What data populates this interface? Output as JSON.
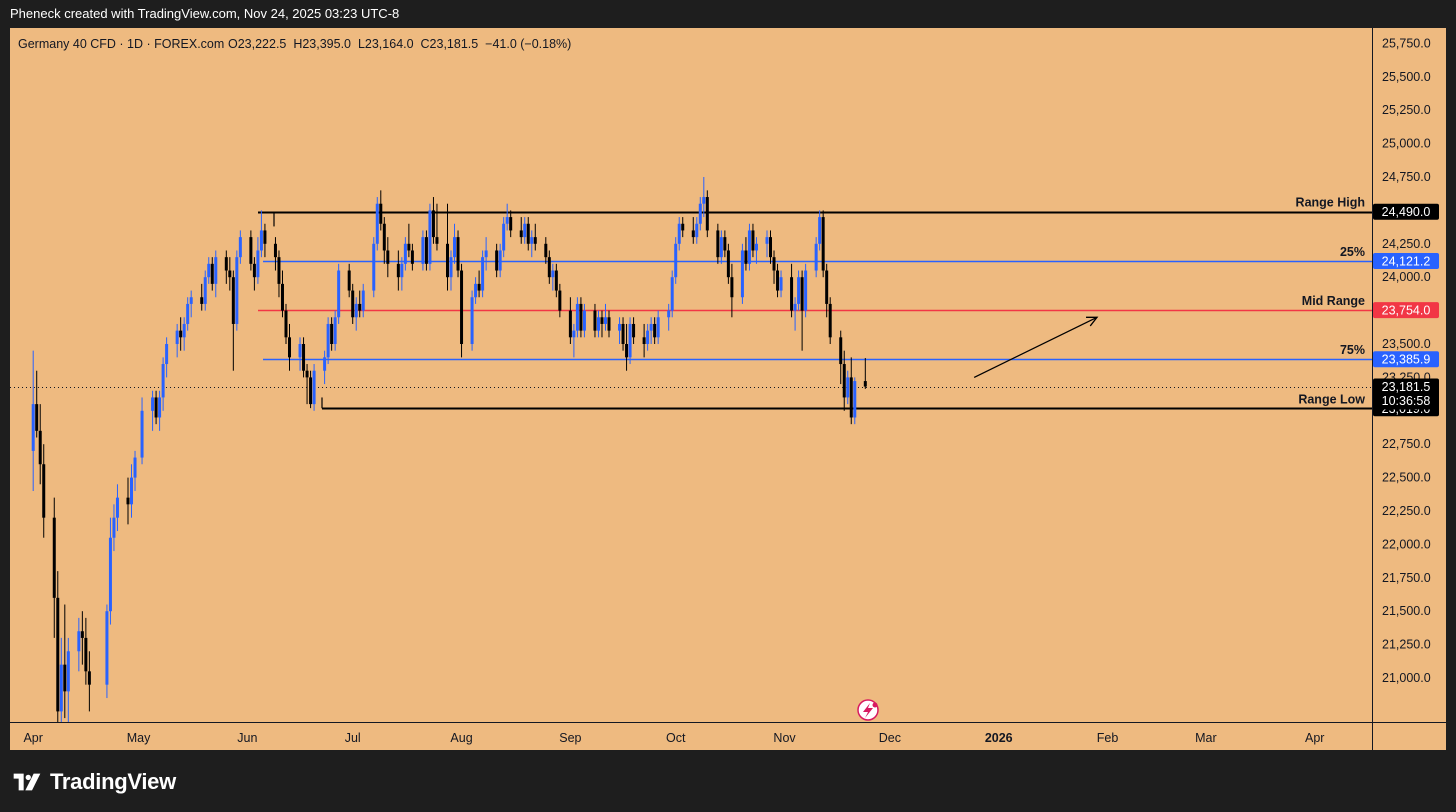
{
  "header": {
    "attribution": "Pheneck created with TradingView.com, Nov 24, 2025 03:23 UTC-8"
  },
  "legend": {
    "symbol": "Germany 40 CFD · 1D · FOREX.com",
    "ohlc": "O23,222.5  H23,395.0  L23,164.0  C23,181.5  −41.0 (−0.18%)"
  },
  "branding": {
    "name": "TradingView",
    "logo_icon": "tradingview-logo-icon"
  },
  "colors": {
    "background": "#eeba80",
    "bull": "#2962ff",
    "bear": "#000000",
    "mid": "#f23645",
    "fib": "#2962ff"
  },
  "chart_data": {
    "type": "candlestick",
    "y_range": [
      20800,
      25950
    ],
    "y_ticks": [
      "21,000.0",
      "21,250.0",
      "21,500.0",
      "21,750.0",
      "22,000.0",
      "22,250.0",
      "22,500.0",
      "22,750.0",
      "23,250.0",
      "23,500.0",
      "24,000.0",
      "24,250.0",
      "24,750.0",
      "25,000.0",
      "25,250.0",
      "25,500.0",
      "25,750.0"
    ],
    "x_labels": [
      "Apr",
      "May",
      "Jun",
      "Jul",
      "Aug",
      "Sep",
      "Oct",
      "Nov",
      "Dec",
      "2026",
      "Feb",
      "Mar",
      "Apr"
    ],
    "levels": [
      {
        "name": "Range High",
        "label": "Range High",
        "price": 24490,
        "price_label": "24,490.0",
        "style": "range"
      },
      {
        "name": "25%",
        "label": "25%",
        "price": 24121.2,
        "price_label": "24,121.2",
        "style": "fib"
      },
      {
        "name": "Mid Range",
        "label": "Mid Range",
        "price": 23754,
        "price_label": "23,754.0",
        "style": "mid"
      },
      {
        "name": "75%",
        "label": "75%",
        "price": 23385.9,
        "price_label": "23,385.9",
        "style": "fib"
      },
      {
        "name": "Range Low",
        "label": "Range Low",
        "price": 23019,
        "price_label": "23,019.0",
        "style": "range"
      }
    ],
    "last_price": {
      "price": 23181.5,
      "label": "23,181.5",
      "countdown": "10:36:58"
    },
    "annotation": {
      "type": "arrow",
      "from": [
        "2025-12-25",
        23250
      ],
      "to": [
        "2026-01-29",
        23700
      ]
    },
    "candles": [
      [
        "2025-04-01",
        22700,
        23450,
        22400,
        23050
      ],
      [
        "2025-04-02",
        23050,
        23300,
        22800,
        22850
      ],
      [
        "2025-04-03",
        22850,
        23050,
        22450,
        22600
      ],
      [
        "2025-04-04",
        22600,
        22750,
        22050,
        22200
      ],
      [
        "2025-04-07",
        22200,
        22350,
        21300,
        21600
      ],
      [
        "2025-04-08",
        21600,
        21800,
        20400,
        20750
      ],
      [
        "2025-04-09",
        20750,
        21300,
        20300,
        21100
      ],
      [
        "2025-04-10",
        21100,
        21550,
        20700,
        20900
      ],
      [
        "2025-04-11",
        20900,
        21300,
        20550,
        21200
      ],
      [
        "2025-04-14",
        21200,
        21450,
        21050,
        21350
      ],
      [
        "2025-04-15",
        21350,
        21500,
        21100,
        21300
      ],
      [
        "2025-04-16",
        21300,
        21450,
        20950,
        21050
      ],
      [
        "2025-04-17",
        21050,
        21200,
        20750,
        20950
      ],
      [
        "2025-04-22",
        20950,
        21550,
        20850,
        21500
      ],
      [
        "2025-04-23",
        21500,
        22200,
        21400,
        22050
      ],
      [
        "2025-04-24",
        22050,
        22300,
        21950,
        22200
      ],
      [
        "2025-04-25",
        22200,
        22450,
        22100,
        22350
      ],
      [
        "2025-04-28",
        22350,
        22500,
        22150,
        22300
      ],
      [
        "2025-04-29",
        22300,
        22600,
        22200,
        22500
      ],
      [
        "2025-04-30",
        22500,
        22700,
        22400,
        22650
      ],
      [
        "2025-05-02",
        22650,
        23100,
        22600,
        23000
      ],
      [
        "2025-05-05",
        23000,
        23150,
        22850,
        23100
      ],
      [
        "2025-05-06",
        23100,
        23150,
        22900,
        22950
      ],
      [
        "2025-05-07",
        22950,
        23150,
        22850,
        23100
      ],
      [
        "2025-05-08",
        23100,
        23400,
        23000,
        23350
      ],
      [
        "2025-05-09",
        23350,
        23550,
        23250,
        23500
      ],
      [
        "2025-05-12",
        23500,
        23650,
        23400,
        23600
      ],
      [
        "2025-05-13",
        23600,
        23700,
        23450,
        23550
      ],
      [
        "2025-05-14",
        23550,
        23700,
        23450,
        23650
      ],
      [
        "2025-05-15",
        23650,
        23850,
        23600,
        23800
      ],
      [
        "2025-05-16",
        23800,
        23900,
        23700,
        23850
      ],
      [
        "2025-05-19",
        23850,
        23950,
        23750,
        23800
      ],
      [
        "2025-05-20",
        23800,
        24050,
        23750,
        24000
      ],
      [
        "2025-05-21",
        24000,
        24150,
        23950,
        24100
      ],
      [
        "2025-05-22",
        24100,
        24150,
        23900,
        23950
      ],
      [
        "2025-05-23",
        23950,
        24200,
        23850,
        24150
      ],
      [
        "2025-05-26",
        24150,
        24200,
        23950,
        24050
      ],
      [
        "2025-05-27",
        24050,
        24150,
        23900,
        24000
      ],
      [
        "2025-05-28",
        24000,
        24050,
        23300,
        23650
      ],
      [
        "2025-05-29",
        23650,
        24200,
        23600,
        24150
      ],
      [
        "2025-05-30",
        24150,
        24350,
        24100,
        24300
      ],
      [
        "2025-06-02",
        24300,
        24350,
        24050,
        24100
      ],
      [
        "2025-06-03",
        24100,
        24150,
        23900,
        24000
      ],
      [
        "2025-06-04",
        24000,
        24300,
        23950,
        24200
      ],
      [
        "2025-06-05",
        24200,
        24500,
        24150,
        24350
      ],
      [
        "2025-06-06",
        24350,
        24400,
        24150,
        24250
      ],
      [
        "2025-06-09",
        24250,
        24300,
        24050,
        24150
      ],
      [
        "2025-06-10",
        24150,
        24200,
        23850,
        23950
      ],
      [
        "2025-06-11",
        23950,
        24050,
        23700,
        23750
      ],
      [
        "2025-06-12",
        23750,
        23800,
        23500,
        23550
      ],
      [
        "2025-06-13",
        23550,
        23650,
        23300,
        23400
      ],
      [
        "2025-06-16",
        23400,
        23550,
        23300,
        23500
      ],
      [
        "2025-06-17",
        23500,
        23550,
        23250,
        23300
      ],
      [
        "2025-06-18",
        23300,
        23350,
        23050,
        23250
      ],
      [
        "2025-06-19",
        23250,
        23300,
        23020,
        23050
      ],
      [
        "2025-06-20",
        23050,
        23350,
        23000,
        23300
      ],
      [
        "2025-06-23",
        23300,
        23450,
        23200,
        23400
      ],
      [
        "2025-06-24",
        23400,
        23700,
        23350,
        23650
      ],
      [
        "2025-06-25",
        23650,
        23700,
        23450,
        23500
      ],
      [
        "2025-06-26",
        23500,
        23750,
        23450,
        23700
      ],
      [
        "2025-06-27",
        23700,
        24100,
        23650,
        24050
      ],
      [
        "2025-06-30",
        24050,
        24100,
        23850,
        23900
      ],
      [
        "2025-07-01",
        23900,
        23950,
        23650,
        23700
      ],
      [
        "2025-07-02",
        23700,
        23850,
        23600,
        23800
      ],
      [
        "2025-07-03",
        23800,
        23900,
        23700,
        23750
      ],
      [
        "2025-07-04",
        23750,
        23950,
        23700,
        23900
      ],
      [
        "2025-07-07",
        23900,
        24300,
        23850,
        24250
      ],
      [
        "2025-07-08",
        24250,
        24600,
        24200,
        24550
      ],
      [
        "2025-07-09",
        24550,
        24650,
        24350,
        24400
      ],
      [
        "2025-07-10",
        24400,
        24450,
        24100,
        24200
      ],
      [
        "2025-07-11",
        24200,
        24300,
        24000,
        24100
      ],
      [
        "2025-07-14",
        24100,
        24200,
        23900,
        24000
      ],
      [
        "2025-07-15",
        24000,
        24150,
        23900,
        24100
      ],
      [
        "2025-07-16",
        24100,
        24300,
        24050,
        24250
      ],
      [
        "2025-07-17",
        24250,
        24400,
        24150,
        24200
      ],
      [
        "2025-07-18",
        24200,
        24250,
        24050,
        24100
      ],
      [
        "2025-07-21",
        24100,
        24350,
        24050,
        24300
      ],
      [
        "2025-07-22",
        24300,
        24350,
        24050,
        24100
      ],
      [
        "2025-07-23",
        24100,
        24550,
        24050,
        24500
      ],
      [
        "2025-07-24",
        24500,
        24600,
        24250,
        24300
      ],
      [
        "2025-07-25",
        24300,
        24550,
        24200,
        24250
      ],
      [
        "2025-07-28",
        24250,
        24550,
        23900,
        24000
      ],
      [
        "2025-07-29",
        24000,
        24200,
        23900,
        24150
      ],
      [
        "2025-07-30",
        24150,
        24400,
        24100,
        24300
      ],
      [
        "2025-07-31",
        24300,
        24350,
        24000,
        24050
      ],
      [
        "2025-08-01",
        24050,
        24100,
        23400,
        23500
      ],
      [
        "2025-08-04",
        23500,
        23900,
        23450,
        23850
      ],
      [
        "2025-08-05",
        23850,
        24000,
        23800,
        23950
      ],
      [
        "2025-08-06",
        23950,
        24050,
        23850,
        23900
      ],
      [
        "2025-08-07",
        23900,
        24200,
        23850,
        24150
      ],
      [
        "2025-08-08",
        24150,
        24300,
        24050,
        24200
      ],
      [
        "2025-08-11",
        24200,
        24250,
        24000,
        24050
      ],
      [
        "2025-08-12",
        24050,
        24250,
        24000,
        24200
      ],
      [
        "2025-08-13",
        24200,
        24450,
        24150,
        24400
      ],
      [
        "2025-08-14",
        24400,
        24550,
        24350,
        24450
      ],
      [
        "2025-08-15",
        24450,
        24500,
        24300,
        24350
      ],
      [
        "2025-08-18",
        24350,
        24450,
        24250,
        24300
      ],
      [
        "2025-08-19",
        24300,
        24450,
        24250,
        24400
      ],
      [
        "2025-08-20",
        24400,
        24450,
        24200,
        24250
      ],
      [
        "2025-08-21",
        24250,
        24350,
        24150,
        24300
      ],
      [
        "2025-08-22",
        24300,
        24400,
        24200,
        24250
      ],
      [
        "2025-08-25",
        24250,
        24300,
        24100,
        24150
      ],
      [
        "2025-08-26",
        24150,
        24200,
        23950,
        24000
      ],
      [
        "2025-08-27",
        24000,
        24100,
        23900,
        24050
      ],
      [
        "2025-08-28",
        24050,
        24100,
        23850,
        23900
      ],
      [
        "2025-08-29",
        23900,
        23950,
        23700,
        23750
      ],
      [
        "2025-09-01",
        23750,
        23850,
        23500,
        23550
      ],
      [
        "2025-09-02",
        23550,
        23650,
        23400,
        23600
      ],
      [
        "2025-09-03",
        23600,
        23850,
        23550,
        23800
      ],
      [
        "2025-09-04",
        23800,
        23850,
        23550,
        23600
      ],
      [
        "2025-09-05",
        23600,
        23800,
        23550,
        23750
      ],
      [
        "2025-09-08",
        23750,
        23800,
        23550,
        23600
      ],
      [
        "2025-09-09",
        23600,
        23750,
        23550,
        23700
      ],
      [
        "2025-09-10",
        23700,
        23750,
        23550,
        23650
      ],
      [
        "2025-09-11",
        23650,
        23800,
        23600,
        23700
      ],
      [
        "2025-09-12",
        23700,
        23750,
        23550,
        23600
      ],
      [
        "2025-09-15",
        23600,
        23700,
        23500,
        23650
      ],
      [
        "2025-09-16",
        23650,
        23700,
        23450,
        23500
      ],
      [
        "2025-09-17",
        23500,
        23650,
        23300,
        23400
      ],
      [
        "2025-09-18",
        23400,
        23700,
        23350,
        23650
      ],
      [
        "2025-09-19",
        23650,
        23700,
        23500,
        23550
      ],
      [
        "2025-09-22",
        23550,
        23650,
        23400,
        23500
      ],
      [
        "2025-09-23",
        23500,
        23650,
        23450,
        23600
      ],
      [
        "2025-09-24",
        23600,
        23700,
        23500,
        23650
      ],
      [
        "2025-09-25",
        23650,
        23700,
        23500,
        23550
      ],
      [
        "2025-09-26",
        23550,
        23750,
        23500,
        23700
      ],
      [
        "2025-09-29",
        23700,
        23800,
        23600,
        23750
      ],
      [
        "2025-09-30",
        23750,
        24050,
        23700,
        24000
      ],
      [
        "2025-10-01",
        24000,
        24300,
        23950,
        24250
      ],
      [
        "2025-10-02",
        24250,
        24450,
        24200,
        24400
      ],
      [
        "2025-10-03",
        24400,
        24450,
        24300,
        24350
      ],
      [
        "2025-10-06",
        24350,
        24450,
        24250,
        24300
      ],
      [
        "2025-10-07",
        24300,
        24450,
        24250,
        24400
      ],
      [
        "2025-10-08",
        24400,
        24600,
        24350,
        24550
      ],
      [
        "2025-10-09",
        24550,
        24750,
        24450,
        24600
      ],
      [
        "2025-10-10",
        24600,
        24650,
        24300,
        24350
      ],
      [
        "2025-10-13",
        24350,
        24400,
        24100,
        24150
      ],
      [
        "2025-10-14",
        24150,
        24350,
        24100,
        24300
      ],
      [
        "2025-10-15",
        24300,
        24350,
        24150,
        24200
      ],
      [
        "2025-10-16",
        24200,
        24250,
        23950,
        24000
      ],
      [
        "2025-10-17",
        24000,
        24100,
        23700,
        23850
      ],
      [
        "2025-10-20",
        23850,
        24250,
        23800,
        24200
      ],
      [
        "2025-10-21",
        24200,
        24300,
        24050,
        24100
      ],
      [
        "2025-10-22",
        24100,
        24400,
        24050,
        24350
      ],
      [
        "2025-10-23",
        24350,
        24400,
        24150,
        24200
      ],
      [
        "2025-10-24",
        24200,
        24300,
        24100,
        24250
      ],
      [
        "2025-10-27",
        24250,
        24350,
        24150,
        24300
      ],
      [
        "2025-10-28",
        24300,
        24350,
        24100,
        24150
      ],
      [
        "2025-10-29",
        24150,
        24200,
        23950,
        24050
      ],
      [
        "2025-10-30",
        24050,
        24100,
        23850,
        23900
      ],
      [
        "2025-10-31",
        23900,
        24050,
        23850,
        24000
      ],
      [
        "2025-11-03",
        24000,
        24100,
        23700,
        23750
      ],
      [
        "2025-11-04",
        23750,
        23850,
        23600,
        23800
      ],
      [
        "2025-11-05",
        23800,
        24050,
        23750,
        24000
      ],
      [
        "2025-11-06",
        24000,
        24050,
        23450,
        23750
      ],
      [
        "2025-11-07",
        23750,
        24100,
        23700,
        24050
      ],
      [
        "2025-11-10",
        24050,
        24300,
        24000,
        24250
      ],
      [
        "2025-11-11",
        24250,
        24500,
        24200,
        24450
      ],
      [
        "2025-11-12",
        24450,
        24500,
        24000,
        24050
      ],
      [
        "2025-11-13",
        24050,
        24100,
        23700,
        23800
      ],
      [
        "2025-11-14",
        23800,
        23850,
        23500,
        23550
      ],
      [
        "2025-11-17",
        23550,
        23600,
        23200,
        23350
      ],
      [
        "2025-11-18",
        23350,
        23450,
        23000,
        23100
      ],
      [
        "2025-11-19",
        23100,
        23300,
        23050,
        23250
      ],
      [
        "2025-11-20",
        23250,
        23400,
        22900,
        22950
      ],
      [
        "2025-11-21",
        22950,
        23250,
        22900,
        23222.5
      ],
      [
        "2025-11-24",
        23222.5,
        23395,
        23164,
        23181.5
      ]
    ]
  }
}
